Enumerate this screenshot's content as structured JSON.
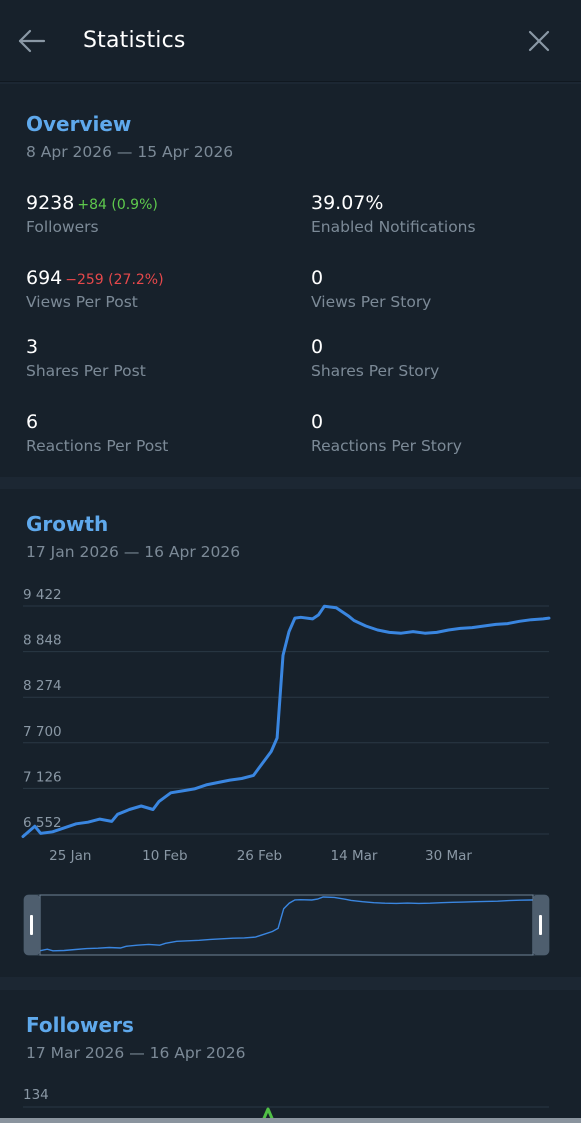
{
  "header": {
    "title": "Statistics",
    "back_icon": "arrow-left-icon",
    "close_icon": "close-icon"
  },
  "overview": {
    "title": "Overview",
    "range": "8 Apr 2026 — 15 Apr 2026",
    "stats": [
      {
        "value": "9238",
        "delta": "+84 (0.9%)",
        "delta_type": "positive",
        "label": "Followers"
      },
      {
        "value": "39.07%",
        "delta": "",
        "delta_type": "",
        "label": "Enabled Notifications"
      },
      {
        "value": "694",
        "delta": "−259 (27.2%)",
        "delta_type": "negative",
        "label": "Views Per Post"
      },
      {
        "value": "0",
        "delta": "",
        "delta_type": "",
        "label": "Views Per Story"
      },
      {
        "value": "3",
        "delta": "",
        "delta_type": "",
        "label": "Shares Per Post"
      },
      {
        "value": "0",
        "delta": "",
        "delta_type": "",
        "label": "Shares Per Story"
      },
      {
        "value": "6",
        "delta": "",
        "delta_type": "",
        "label": "Reactions Per Post"
      },
      {
        "value": "0",
        "delta": "",
        "delta_type": "",
        "label": "Reactions Per Story"
      }
    ]
  },
  "growth": {
    "title": "Growth",
    "range": "17 Jan 2026 — 16 Apr 2026"
  },
  "followers": {
    "title": "Followers",
    "range": "17 Mar 2026 — 16 Apr 2026",
    "y_top_label": "134"
  },
  "colors": {
    "line": "#3a86e0",
    "accent": "#5fa9ec",
    "positive": "#5ec94d",
    "negative": "#e5484b",
    "followers_line": "#4fbf45"
  },
  "chart_data": {
    "type": "line",
    "x_start": "2026-01-17",
    "x_end": "2026-04-16",
    "y_ticks": [
      "9 422",
      "8 848",
      "8 274",
      "7 700",
      "7 126",
      "6 552"
    ],
    "y_tick_values": [
      9422,
      8848,
      8274,
      7700,
      7126,
      6552
    ],
    "x_ticks": [
      "25 Jan",
      "10 Feb",
      "26 Feb",
      "14 Mar",
      "30 Mar"
    ],
    "x_tick_values": [
      "2026-01-25",
      "2026-02-10",
      "2026-02-26",
      "2026-03-14",
      "2026-03-30"
    ],
    "ylim": [
      6552,
      9422
    ],
    "grid": true,
    "series": [
      {
        "x": [
          "2026-01-17",
          "2026-01-19",
          "2026-01-20",
          "2026-01-22",
          "2026-01-24",
          "2026-01-26",
          "2026-01-28",
          "2026-01-30",
          "2026-02-01",
          "2026-02-02",
          "2026-02-04",
          "2026-02-06",
          "2026-02-08",
          "2026-02-09",
          "2026-02-11",
          "2026-02-13",
          "2026-02-15",
          "2026-02-17",
          "2026-02-19",
          "2026-02-21",
          "2026-02-23",
          "2026-02-25",
          "2026-02-26",
          "2026-02-28",
          "2026-03-01",
          "2026-03-02",
          "2026-03-03",
          "2026-03-04",
          "2026-03-05",
          "2026-03-07",
          "2026-03-08",
          "2026-03-09",
          "2026-03-11",
          "2026-03-13",
          "2026-03-14",
          "2026-03-16",
          "2026-03-18",
          "2026-03-20",
          "2026-03-22",
          "2026-03-24",
          "2026-03-26",
          "2026-03-28",
          "2026-03-30",
          "2026-04-01",
          "2026-04-03",
          "2026-04-05",
          "2026-04-07",
          "2026-04-09",
          "2026-04-11",
          "2026-04-13",
          "2026-04-15",
          "2026-04-16"
        ],
        "values": [
          6520,
          6650,
          6560,
          6580,
          6630,
          6680,
          6700,
          6740,
          6710,
          6800,
          6860,
          6905,
          6860,
          6960,
          7070,
          7095,
          7120,
          7170,
          7200,
          7230,
          7250,
          7290,
          7390,
          7590,
          7760,
          8800,
          9100,
          9270,
          9280,
          9260,
          9310,
          9420,
          9400,
          9300,
          9240,
          9170,
          9120,
          9090,
          9080,
          9100,
          9080,
          9090,
          9120,
          9140,
          9150,
          9170,
          9190,
          9200,
          9230,
          9250,
          9260,
          9270
        ]
      }
    ]
  }
}
